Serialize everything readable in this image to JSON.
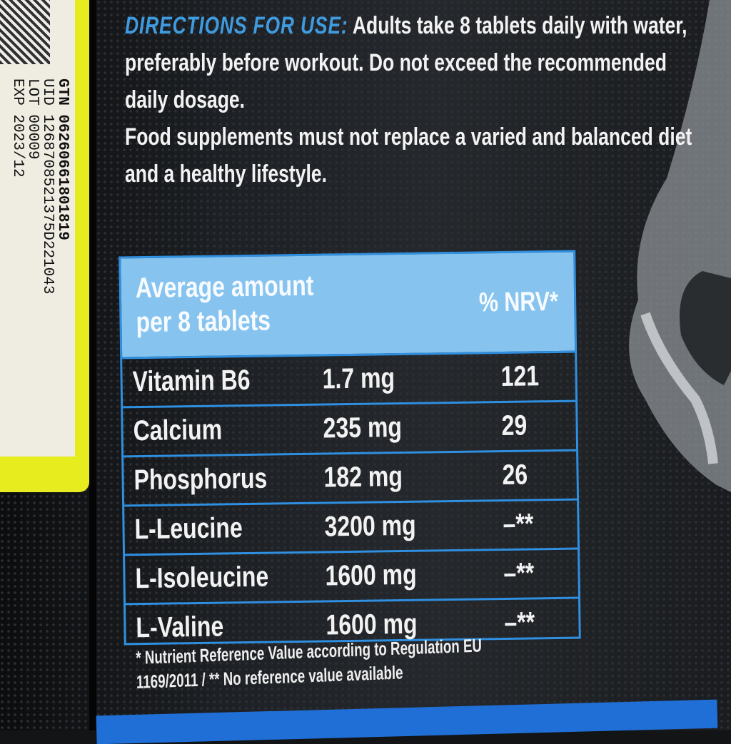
{
  "sticker": {
    "gtin": "GTN 06260661801819",
    "uid": "UID 1268708521375D221043",
    "lot": "LOT 00009",
    "exp": "EXP 2023/12"
  },
  "directions": {
    "heading": "DIRECTIONS FOR USE:",
    "text": "Adults take 8 tablets daily with water, preferably before workout. Do not exceed the recommended daily dosage.",
    "note": "Food supplements must not replace a varied and balanced diet and a healthy lifestyle."
  },
  "table": {
    "header_left_1": "Average amount",
    "header_left_2": "per 8 tablets",
    "header_right": "% NRV*",
    "rows": [
      {
        "name": "Vitamin B6",
        "amount": "1.7 mg",
        "nrv": "121"
      },
      {
        "name": "Calcium",
        "amount": "235 mg",
        "nrv": "29"
      },
      {
        "name": "Phosphorus",
        "amount": "182 mg",
        "nrv": "26"
      },
      {
        "name": "L-Leucine",
        "amount": "3200 mg",
        "nrv": "–**"
      },
      {
        "name": "L-Isoleucine",
        "amount": "1600 mg",
        "nrv": "–**"
      },
      {
        "name": "L-Valine",
        "amount": "1600 mg",
        "nrv": "–**"
      }
    ]
  },
  "footnote": {
    "line1": "* Nutrient Reference Value according to Regulation EU",
    "line2": "1169/2011 / ** No reference value available"
  },
  "colors": {
    "accent_blue": "#2f8fe0",
    "header_blue": "#86c4ef",
    "sticker_yellow": "#e7ec1e"
  }
}
